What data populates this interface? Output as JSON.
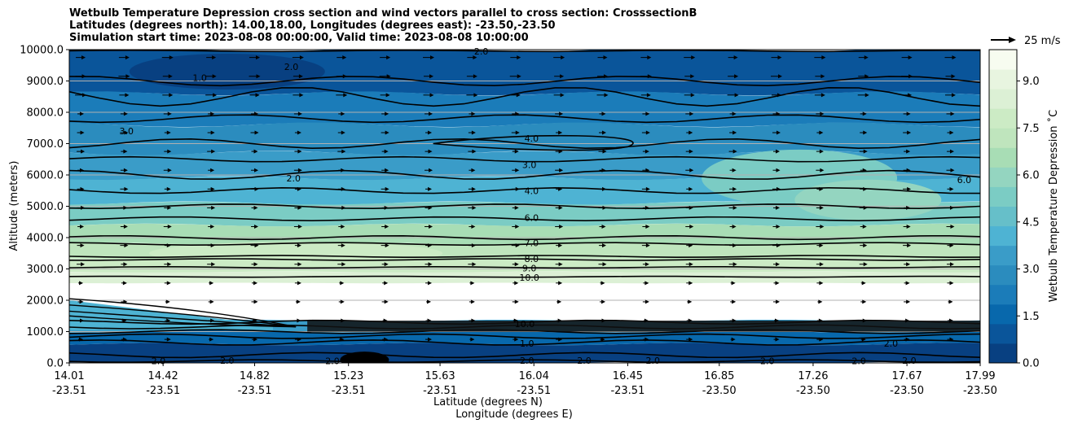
{
  "header": {
    "title_line1": "Wetbulb Temperature Depression cross section and wind vectors parallel to cross section: CrosssectionB",
    "title_line2": "Latitudes (degrees north): 14.00,18.00, Longitudes (degrees east): -23.50,-23.50",
    "title_line3": "Simulation start time: 2023-08-08 00:00:00, Valid time: 2023-08-08 10:00:00"
  },
  "chart_data": {
    "type": "contour-cross-section",
    "ylabel": "Altitude (meters)",
    "xlabel_lat": "Latitude (degrees N)",
    "xlabel_lon": "Longitude (degrees E)",
    "ylim": [
      0,
      10000
    ],
    "y_ticks": [
      "0.0",
      "1000.0",
      "2000.0",
      "3000.0",
      "4000.0",
      "5000.0",
      "6000.0",
      "7000.0",
      "8000.0",
      "9000.0",
      "10000.0"
    ],
    "x_range": [
      14.01,
      17.99
    ],
    "x_ticks": [
      {
        "lat": "14.01",
        "lon": "-23.51",
        "v": 14.01
      },
      {
        "lat": "14.42",
        "lon": "-23.51",
        "v": 14.42
      },
      {
        "lat": "14.82",
        "lon": "-23.51",
        "v": 14.82
      },
      {
        "lat": "15.23",
        "lon": "-23.51",
        "v": 15.23
      },
      {
        "lat": "15.63",
        "lon": "-23.51",
        "v": 15.63
      },
      {
        "lat": "16.04",
        "lon": "-23.51",
        "v": 16.04
      },
      {
        "lat": "16.45",
        "lon": "-23.51",
        "v": 16.45
      },
      {
        "lat": "16.85",
        "lon": "-23.50",
        "v": 16.85
      },
      {
        "lat": "17.26",
        "lon": "-23.50",
        "v": 17.26
      },
      {
        "lat": "17.67",
        "lon": "-23.50",
        "v": 17.67
      },
      {
        "lat": "17.99",
        "lon": "-23.50",
        "v": 17.99
      }
    ],
    "colorbar": {
      "label": "Wetbulb Temperature Depression ˚C",
      "min": 0,
      "max": 10,
      "ticks": [
        "0.0",
        "1.5",
        "3.0",
        "4.5",
        "6.0",
        "7.5",
        "9.0"
      ],
      "tick_values": [
        0,
        1.5,
        3.0,
        4.5,
        6.0,
        7.5,
        9.0
      ],
      "colors": [
        "#084081",
        "#0a559a",
        "#0868ac",
        "#1b7cb9",
        "#2b8cbe",
        "#3a9cc8",
        "#4eb3d3",
        "#66bfc9",
        "#7bccc4",
        "#94d5c0",
        "#a8ddb5",
        "#bfe5bd",
        "#ccebc5",
        "#dcf0d5",
        "#e8f5e0",
        "#f7fcf0"
      ]
    },
    "wind_key": "25 m/s",
    "contour_labels": [
      {
        "text": "2.0",
        "x": 15.81,
        "y": 9950
      },
      {
        "text": "1.0",
        "x": 14.58,
        "y": 9100
      },
      {
        "text": "2.0",
        "x": 14.98,
        "y": 9460
      },
      {
        "text": "3.0",
        "x": 14.26,
        "y": 7400
      },
      {
        "text": "4.0",
        "x": 16.03,
        "y": 7170
      },
      {
        "text": "3.0",
        "x": 16.02,
        "y": 6320
      },
      {
        "text": "2.0",
        "x": 14.99,
        "y": 5900
      },
      {
        "text": "4.0",
        "x": 16.03,
        "y": 5500
      },
      {
        "text": "6.0",
        "x": 17.92,
        "y": 5850
      },
      {
        "text": "6.0",
        "x": 16.03,
        "y": 4640
      },
      {
        "text": "7.0",
        "x": 16.03,
        "y": 3830
      },
      {
        "text": "8.0",
        "x": 16.03,
        "y": 3330
      },
      {
        "text": "9.0",
        "x": 16.02,
        "y": 3030
      },
      {
        "text": "10.0",
        "x": 16.02,
        "y": 2730
      },
      {
        "text": "10.0",
        "x": 16.0,
        "y": 1250
      },
      {
        "text": "1.0",
        "x": 16.01,
        "y": 620
      },
      {
        "text": "2.0",
        "x": 16.01,
        "y": 80
      },
      {
        "text": "2.0",
        "x": 14.4,
        "y": 60
      },
      {
        "text": "2.0",
        "x": 14.7,
        "y": 80
      },
      {
        "text": "2.0",
        "x": 15.16,
        "y": 60
      },
      {
        "text": "2.0",
        "x": 16.26,
        "y": 80
      },
      {
        "text": "2.0",
        "x": 16.56,
        "y": 80
      },
      {
        "text": "2.0",
        "x": 17.06,
        "y": 60
      },
      {
        "text": "2.0",
        "x": 17.46,
        "y": 60
      },
      {
        "text": "2.0",
        "x": 17.68,
        "y": 80
      },
      {
        "text": "2.0",
        "x": 17.6,
        "y": 620
      }
    ]
  }
}
